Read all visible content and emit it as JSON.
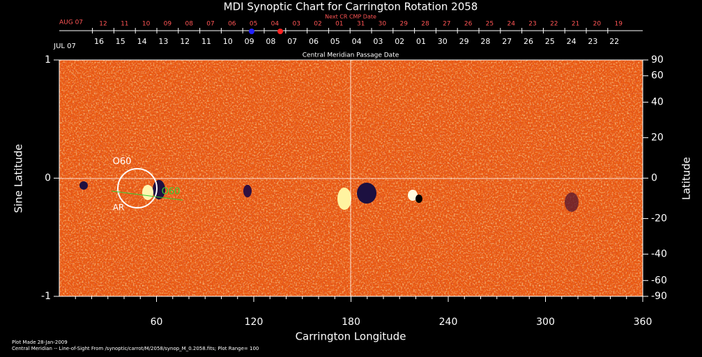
{
  "chart_data": {
    "type": "synoptic-map",
    "title": "MDI Synoptic Chart for Carrington Rotation 2058",
    "xlabel": "Carrington Longitude",
    "ylabel": "Sine Latitude",
    "y2label": "Latitude",
    "xlim": [
      0,
      360
    ],
    "xticks": [
      60,
      120,
      180,
      240,
      300,
      360
    ],
    "ylim": [
      -1,
      1
    ],
    "yticks": [
      -1,
      0,
      1
    ],
    "y2lim": [
      -90,
      90
    ],
    "y2scale": "sine",
    "y2ticks": [
      90,
      60,
      40,
      20,
      0,
      -20,
      -40,
      -60,
      -90
    ],
    "top_axis": {
      "next_label": "Next CR CMP Date",
      "next_month": "AUG 07",
      "next_days": [
        "12",
        "11",
        "10",
        "09",
        "08",
        "07",
        "06",
        "05",
        "04",
        "03",
        "02",
        "01",
        "31",
        "30",
        "29",
        "28",
        "27",
        "26",
        "25",
        "24",
        "23",
        "22",
        "21",
        "20",
        "19"
      ],
      "cmp_label": "Central Meridian Passage Date",
      "cmp_month": "JUL 07",
      "cmp_days": [
        "16",
        "15",
        "14",
        "13",
        "12",
        "11",
        "10",
        "09",
        "08",
        "07",
        "06",
        "05",
        "04",
        "03",
        "02",
        "01",
        "30",
        "29",
        "28",
        "27",
        "26",
        "25",
        "24",
        "23",
        "22"
      ]
    },
    "annotations": [
      "O60",
      "AR",
      "O60"
    ],
    "footer": [
      "Plot Made 28-Jan-2009",
      "Central Meridian -- Line-of-Sight From /synoptic/carrot/M/2058/synop_M_0.2058.fits; Plot Range= 100"
    ]
  }
}
